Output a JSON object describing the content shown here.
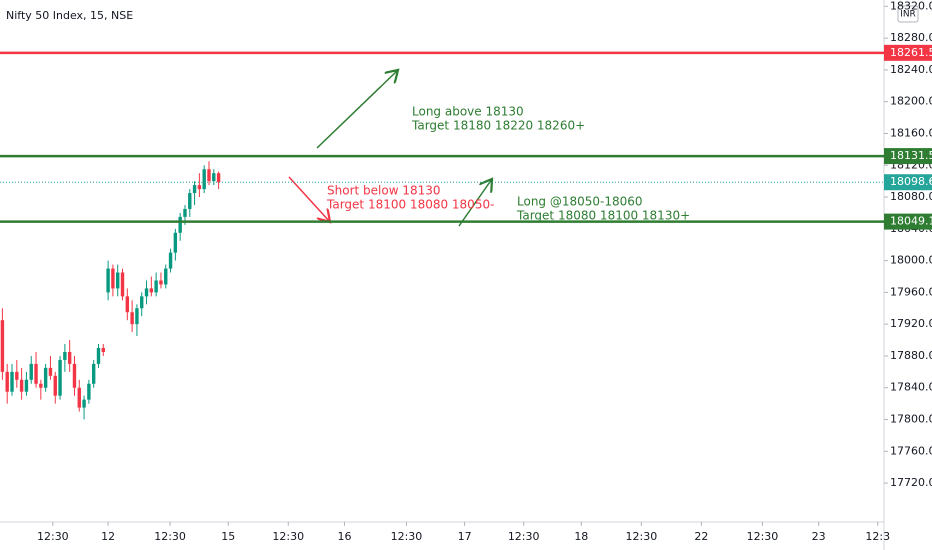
{
  "chart_data": {
    "type": "candlestick",
    "title": "Nifty 50 Index, 15, NSE",
    "currency": "INR",
    "xlim": [
      0,
      184
    ],
    "xticks": [
      {
        "value": 11,
        "label": "12:30"
      },
      {
        "value": 22.5,
        "label": "12"
      },
      {
        "value": 35.4,
        "label": "12:30"
      },
      {
        "value": 47.5,
        "label": "15"
      },
      {
        "value": 60,
        "label": "12:30"
      },
      {
        "value": 71.7,
        "label": "16"
      },
      {
        "value": 84.6,
        "label": "12:30"
      },
      {
        "value": 96.7,
        "label": "17"
      },
      {
        "value": 109,
        "label": "12:30"
      },
      {
        "value": 121,
        "label": "18"
      },
      {
        "value": 133.5,
        "label": "12:30"
      },
      {
        "value": 146,
        "label": "22"
      },
      {
        "value": 158.7,
        "label": "12:30"
      },
      {
        "value": 170.4,
        "label": "23"
      },
      {
        "value": 182.7,
        "label": "12:3"
      }
    ],
    "ylim": [
      17671,
      18328
    ],
    "yticks": [
      {
        "value": 17720,
        "label": "17720.00"
      },
      {
        "value": 17760,
        "label": "17760.00"
      },
      {
        "value": 17800,
        "label": "17800.00"
      },
      {
        "value": 17840,
        "label": "17840.00"
      },
      {
        "value": 17880,
        "label": "17880.00"
      },
      {
        "value": 17920,
        "label": "17920.00"
      },
      {
        "value": 17960,
        "label": "17960.00"
      },
      {
        "value": 18000,
        "label": "18000.00"
      },
      {
        "value": 18040,
        "label": "18040.00"
      },
      {
        "value": 18080,
        "label": "18080.00"
      },
      {
        "value": 18120,
        "label": "18120.00"
      },
      {
        "value": 18160,
        "label": "18160.00"
      },
      {
        "value": 18200,
        "label": "18200.00"
      },
      {
        "value": 18240,
        "label": "18240.00"
      },
      {
        "value": 18280,
        "label": "18280.00"
      },
      {
        "value": 18320,
        "label": "18320.00"
      }
    ],
    "up_color": "#089981",
    "down_color": "#f23645",
    "open": [
      17925,
      17860,
      17835,
      17860,
      17850,
      17835,
      17850,
      17870,
      17845,
      17840,
      17865,
      17855,
      17830,
      17875,
      17885,
      17870,
      17840,
      17815,
      17825,
      17845,
      17870,
      17890,
      17960,
      17990,
      17965,
      17985,
      17955,
      17935,
      17920,
      17940,
      17955,
      17965,
      17960,
      17975,
      17970,
      17990,
      18010,
      18035,
      18055,
      18065,
      18085,
      18095,
      18090,
      18115,
      18100,
      18110
    ],
    "high": [
      17940,
      17870,
      17870,
      17875,
      17865,
      17860,
      17880,
      17885,
      17850,
      17870,
      17880,
      17860,
      17880,
      17895,
      17900,
      17880,
      17850,
      17830,
      17850,
      17875,
      17895,
      17895,
      18000,
      17995,
      17995,
      17990,
      17965,
      17950,
      17945,
      17960,
      17975,
      17980,
      17985,
      17985,
      17995,
      18015,
      18040,
      18060,
      18070,
      18090,
      18100,
      18110,
      18120,
      18125,
      18115,
      18112
    ],
    "low": [
      17850,
      17820,
      17830,
      17840,
      17825,
      17830,
      17845,
      17840,
      17825,
      17835,
      17850,
      17820,
      17825,
      17860,
      17860,
      17830,
      17810,
      17800,
      17820,
      17840,
      17865,
      17880,
      17950,
      17955,
      17955,
      17950,
      17925,
      17910,
      17905,
      17930,
      17945,
      17955,
      17955,
      17965,
      17965,
      17985,
      18000,
      18025,
      18045,
      18055,
      18070,
      18080,
      18085,
      18095,
      18095,
      18090
    ],
    "close": [
      17860,
      17835,
      17860,
      17850,
      17835,
      17850,
      17870,
      17845,
      17840,
      17865,
      17855,
      17830,
      17875,
      17885,
      17870,
      17840,
      17815,
      17825,
      17845,
      17870,
      17890,
      17885,
      17990,
      17965,
      17985,
      17955,
      17935,
      17920,
      17940,
      17955,
      17965,
      17960,
      17975,
      17970,
      17990,
      18010,
      18035,
      18055,
      18065,
      18085,
      18095,
      18090,
      18115,
      18100,
      18110,
      18098.65
    ],
    "levels": [
      {
        "value": 18261.5,
        "label": "18261.50",
        "color": "#f23645"
      },
      {
        "value": 18131.55,
        "label": "18131.55",
        "color": "#2e7d32"
      },
      {
        "value": 18049.1,
        "label": "18049.10",
        "color": "#2e7d32"
      }
    ],
    "last_price": {
      "value": 18098.65,
      "label": "18098.65",
      "color": "#26a69a"
    },
    "annotations": [
      {
        "lines": [
          "Long above 18130",
          "Target 18180 18220 18260+"
        ],
        "color": "#2e7d32"
      },
      {
        "lines": [
          "Short below 18130",
          "Target 18100 18080 18050-"
        ],
        "color": "#f23645"
      },
      {
        "lines": [
          "Long @18050-18060",
          "Target 18080 18100 18130+"
        ],
        "color": "#2e7d32"
      }
    ]
  }
}
